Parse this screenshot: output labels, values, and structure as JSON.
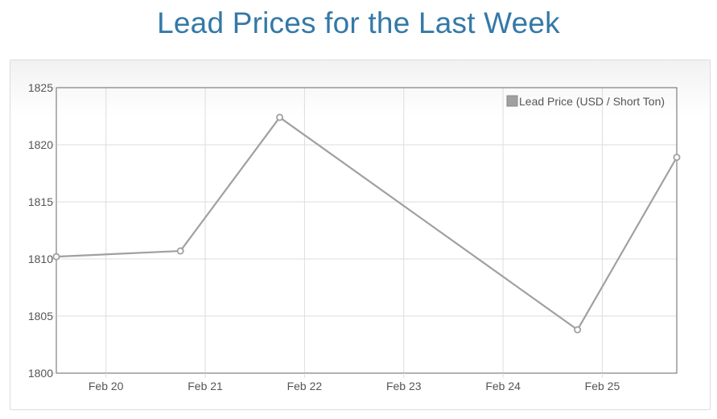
{
  "page": {
    "title": "Lead Prices for the Last Week"
  },
  "colors": {
    "title": "#3479a7",
    "series_line": "#a0a0a0",
    "grid": "#dddddd",
    "axis": "#666666"
  },
  "chart_data": {
    "type": "line",
    "title": "Lead Prices for the Last Week",
    "xlabel": "",
    "ylabel": "",
    "ylim": [
      1800,
      1825
    ],
    "xlim": [
      "2020-02-19T12:00",
      "2020-02-25T18:00"
    ],
    "y_ticks": [
      1800,
      1805,
      1810,
      1815,
      1820,
      1825
    ],
    "x_ticks": [
      {
        "date": "2020-02-20T00:00",
        "label": "Feb 20"
      },
      {
        "date": "2020-02-21T00:00",
        "label": "Feb 21"
      },
      {
        "date": "2020-02-22T00:00",
        "label": "Feb 22"
      },
      {
        "date": "2020-02-23T00:00",
        "label": "Feb 23"
      },
      {
        "date": "2020-02-24T00:00",
        "label": "Feb 24"
      },
      {
        "date": "2020-02-25T00:00",
        "label": "Feb 25"
      }
    ],
    "grid": true,
    "legend": "top-right",
    "series": [
      {
        "name": "Lead Price (USD / Short Ton)",
        "color": "#a0a0a0",
        "points": [
          {
            "x": "2020-02-19T12:00",
            "y": 1810.2
          },
          {
            "x": "2020-02-20T18:00",
            "y": 1810.7
          },
          {
            "x": "2020-02-21T18:00",
            "y": 1822.4
          },
          {
            "x": "2020-02-24T18:00",
            "y": 1803.8
          },
          {
            "x": "2020-02-25T18:00",
            "y": 1818.9
          }
        ]
      }
    ]
  }
}
